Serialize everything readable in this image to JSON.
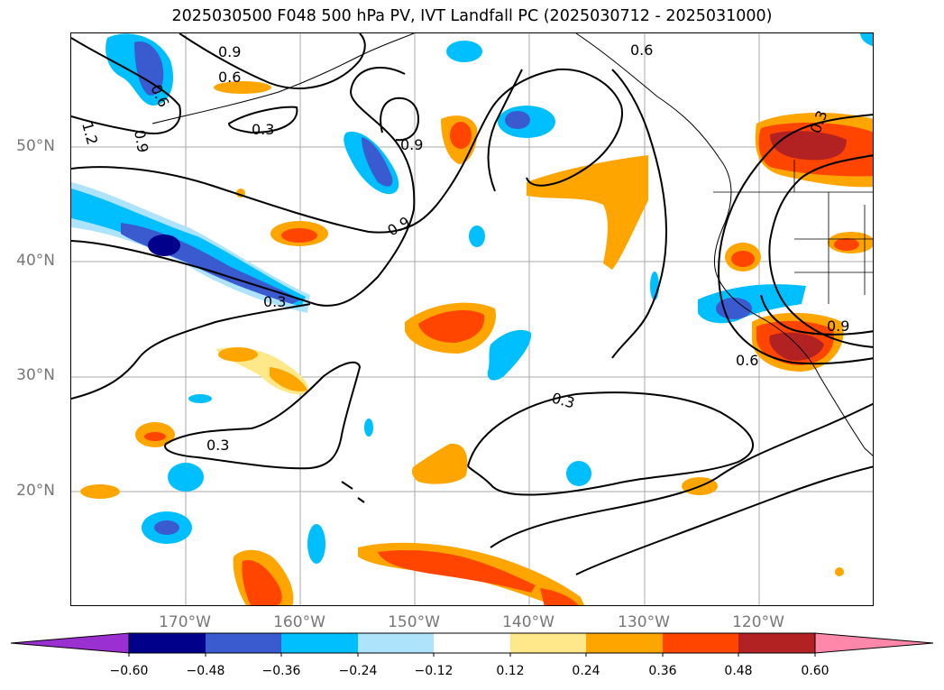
{
  "title": "2025030500 F048 500 hPa PV, IVT Landfall PC (2025030712 - 2025031000)",
  "lat_labels": [
    "50°N",
    "40°N",
    "30°N",
    "20°N"
  ],
  "lon_labels": [
    "170°W",
    "160°W",
    "150°W",
    "140°W",
    "130°W",
    "120°W"
  ],
  "contour_labels": [
    "0.9",
    "0.6",
    "0.3",
    "1.2",
    "0.9",
    "0.6",
    "0.9",
    "0.9",
    "0.3",
    "0.3",
    "0.3",
    "0.6",
    "0.3",
    "0.6",
    "0.9"
  ],
  "colorbar": {
    "ticks": [
      "−0.60",
      "−0.48",
      "−0.36",
      "−0.24",
      "−0.12",
      "0.12",
      "0.24",
      "0.36",
      "0.48",
      "0.60"
    ],
    "colors": [
      "#9b30d0",
      "#00008b",
      "#3a5bd0",
      "#00bfff",
      "#aee4fb",
      "#ffffff",
      "#ffe88a",
      "#ffa500",
      "#ff4500",
      "#b22222",
      "#ff88aa"
    ]
  },
  "colors": {
    "neg_light": "#aee4fb",
    "neg_mid": "#00bfff",
    "neg_dark": "#3a5bd0",
    "neg_darkest": "#00008b",
    "pos_light": "#ffe88a",
    "pos_mid": "#ffa500",
    "pos_dark": "#ff4500",
    "pos_darkest": "#b22222",
    "grid": "#aaaaaa",
    "axis_label": "#777777"
  }
}
